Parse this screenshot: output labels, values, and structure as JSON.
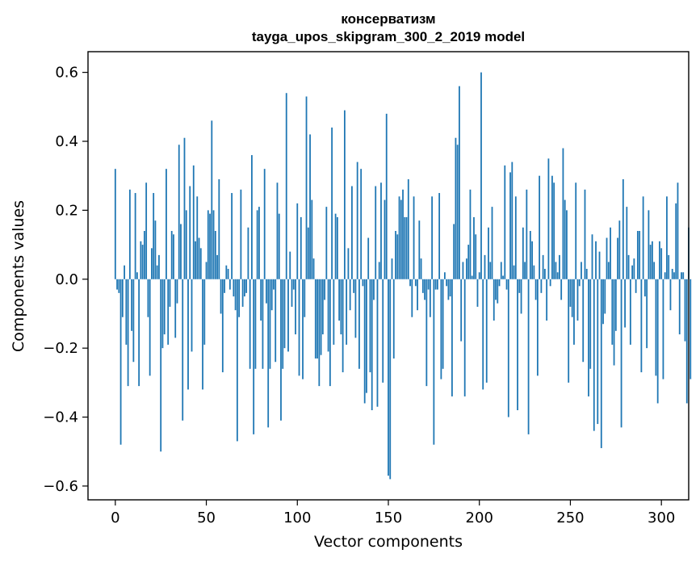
{
  "chart_data": {
    "type": "bar",
    "title": "консерватизм",
    "subtitle": "tayga_upos_skipgram_300_2_2019 model",
    "xlabel": "Vector components",
    "ylabel": "Components values",
    "xlim": [
      -15,
      315
    ],
    "ylim": [
      -0.64,
      0.66
    ],
    "x_ticks": [
      0,
      50,
      100,
      150,
      200,
      250,
      300
    ],
    "y_ticks": [
      -0.6,
      -0.4,
      -0.2,
      0.0,
      0.2,
      0.4,
      0.6
    ],
    "x_tick_labels": [
      "0",
      "50",
      "100",
      "150",
      "200",
      "250",
      "300"
    ],
    "y_tick_labels": [
      "−0.6",
      "−0.4",
      "−0.2",
      "0.0",
      "0.2",
      "0.4",
      "0.6"
    ],
    "grid": false,
    "bar_color": "#1f77b4",
    "values": [
      0.32,
      -0.03,
      -0.04,
      -0.48,
      -0.11,
      0.04,
      -0.19,
      -0.31,
      0.26,
      -0.15,
      -0.24,
      0.25,
      0.02,
      -0.31,
      0.11,
      0.1,
      0.14,
      0.28,
      -0.11,
      -0.28,
      0.09,
      0.25,
      0.17,
      0.04,
      0.07,
      -0.5,
      -0.2,
      -0.16,
      0.32,
      -0.19,
      -0.08,
      0.14,
      0.13,
      -0.17,
      -0.07,
      0.39,
      0.16,
      -0.41,
      0.41,
      0.2,
      -0.32,
      0.27,
      -0.21,
      0.33,
      0.11,
      0.24,
      0.12,
      0.09,
      -0.32,
      -0.19,
      0.05,
      0.2,
      0.19,
      0.46,
      0.2,
      0.14,
      0.07,
      0.29,
      -0.1,
      -0.27,
      -0.04,
      0.04,
      0.03,
      -0.03,
      0.25,
      -0.05,
      -0.09,
      -0.47,
      -0.11,
      0.26,
      -0.08,
      -0.05,
      -0.04,
      0.15,
      -0.26,
      0.36,
      -0.45,
      -0.26,
      0.2,
      0.21,
      -0.12,
      -0.26,
      0.32,
      -0.07,
      -0.43,
      -0.26,
      -0.09,
      -0.03,
      -0.24,
      0.28,
      0.19,
      -0.41,
      -0.26,
      -0.2,
      0.54,
      -0.21,
      0.08,
      -0.08,
      -0.03,
      -0.16,
      0.22,
      -0.28,
      0.18,
      -0.29,
      -0.11,
      0.53,
      0.15,
      0.42,
      0.23,
      0.06,
      -0.23,
      -0.23,
      -0.31,
      -0.22,
      -0.16,
      -0.06,
      0.21,
      -0.21,
      -0.31,
      0.44,
      -0.19,
      0.19,
      0.18,
      -0.12,
      -0.16,
      -0.27,
      0.49,
      -0.19,
      0.09,
      -0.09,
      0.27,
      -0.04,
      -0.17,
      0.34,
      -0.26,
      0.32,
      -0.02,
      -0.36,
      -0.33,
      0.12,
      -0.27,
      -0.38,
      -0.06,
      0.27,
      -0.37,
      0.05,
      0.28,
      -0.3,
      0.23,
      0.48,
      -0.57,
      -0.58,
      0.06,
      -0.23,
      0.14,
      0.13,
      0.24,
      0.23,
      0.26,
      0.18,
      0.18,
      0.29,
      -0.02,
      -0.11,
      0.24,
      -0.02,
      -0.09,
      0.17,
      0.06,
      -0.04,
      -0.06,
      -0.31,
      -0.03,
      -0.11,
      0.24,
      -0.48,
      -0.03,
      -0.03,
      0.25,
      -0.29,
      -0.26,
      0.02,
      -0.02,
      -0.06,
      -0.05,
      -0.34,
      0.16,
      0.41,
      0.39,
      0.56,
      -0.18,
      0.05,
      -0.34,
      0.06,
      0.1,
      0.26,
      0.01,
      0.18,
      0.13,
      -0.08,
      0.02,
      0.6,
      -0.32,
      0.07,
      -0.3,
      0.15,
      0.05,
      0.21,
      -0.12,
      -0.06,
      -0.07,
      -0.02,
      0.05,
      0.01,
      0.33,
      -0.03,
      -0.4,
      0.31,
      0.34,
      0.04,
      0.24,
      -0.38,
      -0.04,
      -0.1,
      0.15,
      0.05,
      0.26,
      -0.45,
      0.14,
      0.11,
      0.04,
      -0.06,
      -0.28,
      0.3,
      -0.04,
      0.07,
      0.03,
      -0.12,
      0.35,
      -0.02,
      0.3,
      0.28,
      0.05,
      0.02,
      0.07,
      -0.06,
      0.38,
      0.23,
      0.2,
      -0.3,
      -0.08,
      -0.11,
      -0.19,
      0.28,
      -0.12,
      -0.02,
      0.05,
      -0.24,
      0.26,
      0.03,
      -0.34,
      -0.26,
      0.13,
      -0.44,
      0.11,
      -0.42,
      0.08,
      -0.49,
      -0.13,
      -0.1,
      0.12,
      0.05,
      0.15,
      -0.19,
      -0.25,
      -0.15,
      0.12,
      0.17,
      -0.43,
      0.29,
      -0.14,
      0.21,
      0.07,
      -0.19,
      0.04,
      0.06,
      -0.04,
      0.14,
      0.14,
      -0.27,
      0.24,
      -0.05,
      -0.2,
      0.2,
      0.1,
      0.11,
      0.05,
      -0.28,
      -0.36,
      0.11,
      0.09,
      -0.29,
      0.02,
      0.24,
      0.07,
      -0.09,
      0.03,
      0.02,
      0.22,
      0.28,
      -0.16,
      0.02,
      0.02,
      -0.18,
      -0.36,
      0.15,
      -0.29
    ]
  }
}
